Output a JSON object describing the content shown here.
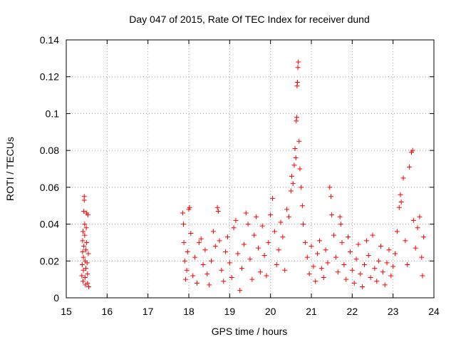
{
  "chart_data": {
    "type": "scatter",
    "title": "Day 047 of 2015, Rate Of TEC Index for receiver dund",
    "xlabel": "GPS time / hours",
    "ylabel": "ROTI / TECUs",
    "xlim": [
      15,
      24
    ],
    "ylim": [
      0,
      0.14
    ],
    "grid": true,
    "marker": "+",
    "color": "#ff0000",
    "x_ticks": [
      15,
      16,
      17,
      18,
      19,
      20,
      21,
      22,
      23,
      24
    ],
    "x_tick_labels": [
      "15",
      "16",
      "17",
      "18",
      "19",
      "20",
      "21",
      "22",
      "23",
      "24"
    ],
    "y_ticks": [
      0,
      0.02,
      0.04,
      0.06,
      0.08,
      0.1,
      0.12,
      0.14
    ],
    "y_tick_labels": [
      "0",
      "0.02",
      "0.04",
      "0.06",
      "0.08",
      "0.1",
      "0.12",
      "0.14"
    ],
    "series": [
      {
        "name": "ROTI",
        "points": [
          [
            15.38,
            0.012
          ],
          [
            15.39,
            0.018
          ],
          [
            15.4,
            0.025
          ],
          [
            15.4,
            0.031
          ],
          [
            15.41,
            0.036
          ],
          [
            15.41,
            0.009
          ],
          [
            15.42,
            0.015
          ],
          [
            15.42,
            0.022
          ],
          [
            15.43,
            0.028
          ],
          [
            15.43,
            0.047
          ],
          [
            15.44,
            0.053
          ],
          [
            15.44,
            0.055
          ],
          [
            15.45,
            0.04
          ],
          [
            15.45,
            0.034
          ],
          [
            15.46,
            0.02
          ],
          [
            15.46,
            0.011
          ],
          [
            15.47,
            0.007
          ],
          [
            15.48,
            0.016
          ],
          [
            15.48,
            0.026
          ],
          [
            15.49,
            0.038
          ],
          [
            15.5,
            0.046
          ],
          [
            15.5,
            0.03
          ],
          [
            15.51,
            0.019
          ],
          [
            15.52,
            0.008
          ],
          [
            15.52,
            0.013
          ],
          [
            15.53,
            0.045
          ],
          [
            15.54,
            0.024
          ],
          [
            15.55,
            0.006
          ],
          [
            17.85,
            0.046
          ],
          [
            17.87,
            0.04
          ],
          [
            17.88,
            0.03
          ],
          [
            17.9,
            0.02
          ],
          [
            17.92,
            0.01
          ],
          [
            17.95,
            0.015
          ],
          [
            17.97,
            0.025
          ],
          [
            18.0,
            0.048
          ],
          [
            18.02,
            0.049
          ],
          [
            18.05,
            0.035
          ],
          [
            18.1,
            0.012
          ],
          [
            18.15,
            0.022
          ],
          [
            18.2,
            0.008
          ],
          [
            18.25,
            0.03
          ],
          [
            18.3,
            0.032
          ],
          [
            18.35,
            0.018
          ],
          [
            18.4,
            0.026
          ],
          [
            18.45,
            0.013
          ],
          [
            18.5,
            0.007
          ],
          [
            18.55,
            0.02
          ],
          [
            18.6,
            0.036
          ],
          [
            18.65,
            0.028
          ],
          [
            18.7,
            0.049
          ],
          [
            18.72,
            0.047
          ],
          [
            18.75,
            0.031
          ],
          [
            18.8,
            0.015
          ],
          [
            18.85,
            0.009
          ],
          [
            18.9,
            0.025
          ],
          [
            18.95,
            0.033
          ],
          [
            19.0,
            0.019
          ],
          [
            19.05,
            0.011
          ],
          [
            19.1,
            0.038
          ],
          [
            19.15,
            0.042
          ],
          [
            19.2,
            0.024
          ],
          [
            19.25,
            0.004
          ],
          [
            19.3,
            0.016
          ],
          [
            19.35,
            0.029
          ],
          [
            19.4,
            0.046
          ],
          [
            19.45,
            0.04
          ],
          [
            19.5,
            0.021
          ],
          [
            19.55,
            0.01
          ],
          [
            19.6,
            0.034
          ],
          [
            19.65,
            0.044
          ],
          [
            19.7,
            0.027
          ],
          [
            19.75,
            0.014
          ],
          [
            19.8,
            0.039
          ],
          [
            19.85,
            0.023
          ],
          [
            19.9,
            0.012
          ],
          [
            19.95,
            0.03
          ],
          [
            20.0,
            0.045
          ],
          [
            20.05,
            0.054
          ],
          [
            20.1,
            0.036
          ],
          [
            20.15,
            0.018
          ],
          [
            20.2,
            0.026
          ],
          [
            20.25,
            0.041
          ],
          [
            20.3,
            0.033
          ],
          [
            20.35,
            0.015
          ],
          [
            20.4,
            0.048
          ],
          [
            20.45,
            0.044
          ],
          [
            20.5,
            0.058
          ],
          [
            20.52,
            0.066
          ],
          [
            20.55,
            0.062
          ],
          [
            20.58,
            0.072
          ],
          [
            20.6,
            0.081
          ],
          [
            20.62,
            0.076
          ],
          [
            20.63,
            0.096
          ],
          [
            20.64,
            0.098
          ],
          [
            20.65,
            0.115
          ],
          [
            20.66,
            0.117
          ],
          [
            20.67,
            0.125
          ],
          [
            20.68,
            0.128
          ],
          [
            20.7,
            0.085
          ],
          [
            20.72,
            0.07
          ],
          [
            20.75,
            0.06
          ],
          [
            20.78,
            0.05
          ],
          [
            20.8,
            0.04
          ],
          [
            20.85,
            0.03
          ],
          [
            20.9,
            0.022
          ],
          [
            20.95,
            0.013
          ],
          [
            21.0,
            0.028
          ],
          [
            21.05,
            0.017
          ],
          [
            21.1,
            0.009
          ],
          [
            21.15,
            0.024
          ],
          [
            21.2,
            0.031
          ],
          [
            21.25,
            0.016
          ],
          [
            21.3,
            0.011
          ],
          [
            21.35,
            0.026
          ],
          [
            21.4,
            0.019
          ],
          [
            21.45,
            0.06
          ],
          [
            21.48,
            0.055
          ],
          [
            21.5,
            0.045
          ],
          [
            21.55,
            0.034
          ],
          [
            21.6,
            0.022
          ],
          [
            21.65,
            0.014
          ],
          [
            21.7,
            0.044
          ],
          [
            21.72,
            0.04
          ],
          [
            21.75,
            0.03
          ],
          [
            21.8,
            0.018
          ],
          [
            21.85,
            0.01
          ],
          [
            21.9,
            0.033
          ],
          [
            21.95,
            0.025
          ],
          [
            22.0,
            0.015
          ],
          [
            22.05,
            0.008
          ],
          [
            22.1,
            0.021
          ],
          [
            22.15,
            0.029
          ],
          [
            22.2,
            0.013
          ],
          [
            22.25,
            0.006
          ],
          [
            22.3,
            0.018
          ],
          [
            22.35,
            0.031
          ],
          [
            22.4,
            0.023
          ],
          [
            22.45,
            0.011
          ],
          [
            22.5,
            0.034
          ],
          [
            22.55,
            0.016
          ],
          [
            22.6,
            0.009
          ],
          [
            22.65,
            0.02
          ],
          [
            22.7,
            0.028
          ],
          [
            22.75,
            0.014
          ],
          [
            22.8,
            0.007
          ],
          [
            22.85,
            0.019
          ],
          [
            22.9,
            0.026
          ],
          [
            22.95,
            0.012
          ],
          [
            23.0,
            0.017
          ],
          [
            23.05,
            0.024
          ],
          [
            23.1,
            0.036
          ],
          [
            23.15,
            0.049
          ],
          [
            23.18,
            0.056
          ],
          [
            23.2,
            0.052
          ],
          [
            23.25,
            0.065
          ],
          [
            23.3,
            0.031
          ],
          [
            23.35,
            0.018
          ],
          [
            23.4,
            0.071
          ],
          [
            23.45,
            0.079
          ],
          [
            23.48,
            0.08
          ],
          [
            23.5,
            0.042
          ],
          [
            23.55,
            0.027
          ],
          [
            23.6,
            0.038
          ],
          [
            23.65,
            0.044
          ],
          [
            23.7,
            0.022
          ],
          [
            23.72,
            0.012
          ],
          [
            23.75,
            0.033
          ]
        ]
      }
    ]
  }
}
